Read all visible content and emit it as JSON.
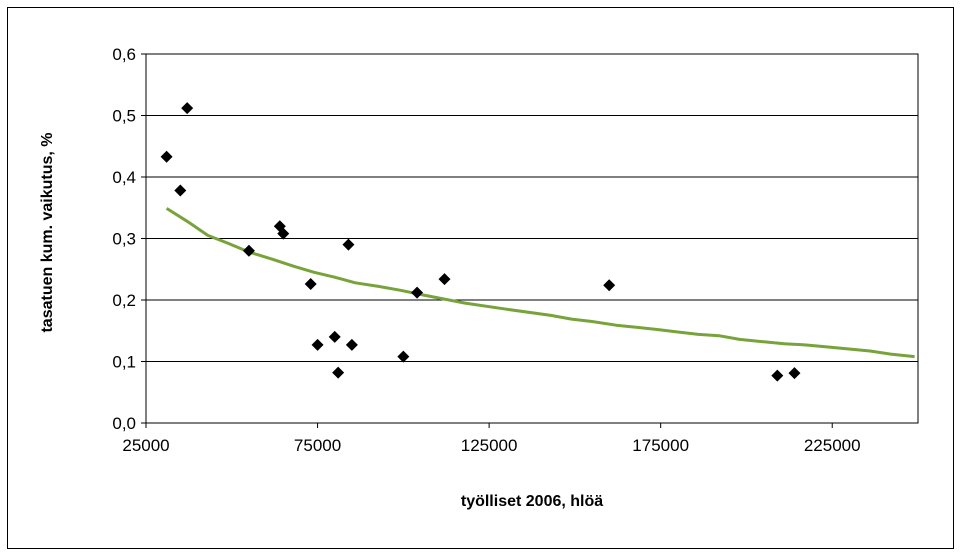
{
  "chart_data": {
    "type": "scatter",
    "title": "",
    "xlabel": "työlliset 2006, hlöä",
    "ylabel": "tasatuen kum. vaikutus, %",
    "xlim": [
      25000,
      250000
    ],
    "ylim": [
      0,
      0.6
    ],
    "x_ticks": [
      25000,
      75000,
      125000,
      175000,
      225000
    ],
    "x_tick_labels": [
      "25000",
      "75000",
      "125000",
      "175000",
      "225000"
    ],
    "y_ticks": [
      0,
      0.1,
      0.2,
      0.3,
      0.4,
      0.5,
      0.6
    ],
    "y_tick_labels": [
      "0,0",
      "0,1",
      "0,2",
      "0,3",
      "0,4",
      "0,5",
      "0,6"
    ],
    "grid": "horizontal",
    "legend": "none",
    "colors": {
      "points": "#000000",
      "trend": "#77A33A",
      "grid": "#000000"
    },
    "series": [
      {
        "type": "scatter",
        "marker": "diamond",
        "x": [
          31000,
          35000,
          37000,
          55000,
          64000,
          65000,
          73000,
          75000,
          80000,
          81000,
          84000,
          85000,
          100000,
          104000,
          112000,
          160000,
          209000,
          214000
        ],
        "y": [
          0.433,
          0.378,
          0.512,
          0.28,
          0.32,
          0.308,
          0.226,
          0.127,
          0.14,
          0.082,
          0.29,
          0.127,
          0.108,
          0.212,
          0.234,
          0.224,
          0.077,
          0.081
        ]
      },
      {
        "type": "line",
        "x": [
          31000,
          37000,
          43000,
          49000,
          55000,
          62000,
          68000,
          74000,
          80000,
          86000,
          93000,
          99000,
          106000,
          118000,
          130000,
          143000,
          149000,
          155000,
          162000,
          174000,
          180000,
          186000,
          192000,
          198000,
          205000,
          211000,
          217000,
          223000,
          236000,
          242000,
          249000
        ],
        "y": [
          0.349,
          0.328,
          0.305,
          0.292,
          0.278,
          0.266,
          0.255,
          0.245,
          0.237,
          0.228,
          0.222,
          0.216,
          0.208,
          0.195,
          0.185,
          0.175,
          0.169,
          0.165,
          0.159,
          0.152,
          0.148,
          0.144,
          0.142,
          0.136,
          0.132,
          0.129,
          0.127,
          0.124,
          0.117,
          0.112,
          0.108
        ]
      }
    ]
  }
}
